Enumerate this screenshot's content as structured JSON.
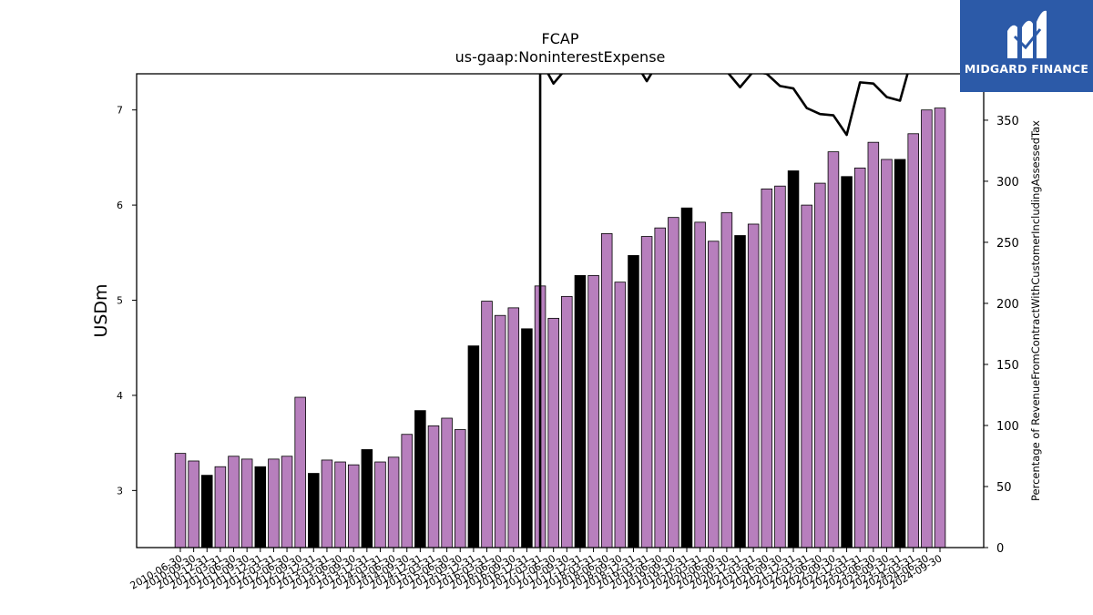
{
  "brand": {
    "name": "MIDGARD FINANCE",
    "logo_icon": "midgard-m-icon",
    "bg_color": "#2c5aa8"
  },
  "chart_data": {
    "type": "bar",
    "title": "FCAP",
    "subtitle": "us-gaap:NoninterestExpense",
    "ylabel": "USDm",
    "y2label": "Percentage of RevenueFromContractWithCustomerIncludingAssessedTax",
    "ylim": [
      2.4,
      7.38
    ],
    "y2lim": [
      0,
      388
    ],
    "yticks": [
      3,
      4,
      5,
      6,
      7
    ],
    "y2ticks": [
      0,
      50,
      100,
      150,
      200,
      250,
      300,
      350
    ],
    "colors": {
      "bar": "#b77fbd",
      "bar_q4": "#000000",
      "line": "#000000"
    },
    "grid": false,
    "categories": [
      "2010-06-30",
      "2010-09-30",
      "2010-12-31",
      "2011-03-31",
      "2011-06-30",
      "2011-09-30",
      "2011-12-31",
      "2012-03-31",
      "2012-06-30",
      "2012-09-30",
      "2012-12-31",
      "2013-03-31",
      "2013-06-30",
      "2013-09-30",
      "2013-12-31",
      "2014-03-31",
      "2014-06-30",
      "2014-09-30",
      "2014-12-31",
      "2015-03-31",
      "2015-06-30",
      "2015-09-30",
      "2015-12-31",
      "2016-03-31",
      "2016-06-30",
      "2016-09-30",
      "2016-12-31",
      "2017-03-31",
      "2017-06-30",
      "2017-09-30",
      "2017-12-31",
      "2018-03-31",
      "2018-06-30",
      "2018-09-30",
      "2018-12-31",
      "2019-03-31",
      "2019-06-30",
      "2019-09-30",
      "2019-12-31",
      "2020-03-31",
      "2020-06-30",
      "2020-09-30",
      "2020-12-31",
      "2021-03-31",
      "2021-06-30",
      "2021-09-30",
      "2021-12-31",
      "2022-03-31",
      "2022-06-30",
      "2022-09-30",
      "2022-12-31",
      "2023-03-31",
      "2023-06-30",
      "2023-09-30",
      "2023-12-31",
      "2024-03-31",
      "2024-06-30",
      "2024-09-30"
    ],
    "series": [
      {
        "values": [
          3.39,
          3.31,
          3.16,
          3.25,
          3.36,
          3.33,
          3.25,
          3.33,
          3.36,
          3.98,
          3.18,
          3.32,
          3.3,
          3.27,
          3.43,
          3.3,
          3.35,
          3.59,
          3.84,
          3.68,
          3.76,
          3.64,
          4.52,
          4.99,
          4.84,
          4.92,
          4.7,
          5.15,
          4.81,
          5.04,
          5.26,
          5.26,
          5.7,
          5.19,
          5.47,
          5.67,
          5.76,
          5.87,
          5.97,
          5.82,
          5.62,
          5.92,
          5.68,
          5.8,
          6.17,
          6.2,
          6.36,
          6.0,
          6.23,
          6.56,
          6.3,
          6.39,
          6.66,
          6.48,
          6.48,
          6.75,
          7.0,
          7.02
        ]
      },
      {
        "axis": "right",
        "values": [
          null,
          null,
          null,
          null,
          null,
          null,
          null,
          null,
          null,
          null,
          null,
          null,
          null,
          null,
          null,
          null,
          null,
          null,
          null,
          null,
          null,
          null,
          null,
          null,
          null,
          null,
          null,
          400,
          380,
          393,
          400,
          405,
          403,
          402,
          400,
          382,
          400,
          405,
          408,
          403,
          398,
          390,
          377,
          390,
          388,
          378,
          376,
          360,
          355,
          354,
          338,
          381,
          380,
          369,
          366,
          405,
          400,
          390
        ]
      }
    ]
  }
}
